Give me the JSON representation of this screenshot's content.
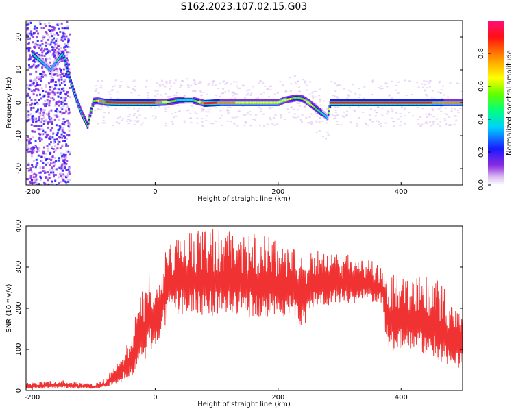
{
  "title": "S162.2023.107.02.15.G03",
  "colors": {
    "snr_line": "#f03232",
    "axis": "#000000",
    "background": "#ffffff",
    "ridge_peak": "#e8001e",
    "spectrogram_low": "#d8b8f0"
  },
  "chart_data": [
    {
      "type": "heatmap",
      "subtype": "spectrogram",
      "title": "",
      "xlabel": "Height of straight line (km)",
      "ylabel": "Frequency (Hz)",
      "xlim": [
        -210,
        500
      ],
      "ylim": [
        -25,
        25
      ],
      "xticks": [
        -200,
        0,
        200,
        400
      ],
      "yticks": [
        -20,
        -10,
        0,
        10,
        20
      ],
      "grid": false,
      "colorbar": {
        "label": "Normalized spectral amplitude",
        "range": [
          0,
          1
        ],
        "ticks": [
          0.0,
          0.2,
          0.4,
          0.6,
          0.8
        ],
        "colormap": "white-purple-blue-cyan-green-yellow-orange-red-magenta"
      },
      "dominant_frequency_track": {
        "x": [
          -200,
          -170,
          -150,
          -140,
          -130,
          -120,
          -110,
          -105,
          -100,
          -95,
          -90,
          -80,
          -60,
          0,
          20,
          40,
          60,
          75,
          80,
          100,
          150,
          200,
          210,
          230,
          240,
          250,
          260,
          270,
          280,
          285,
          300,
          350,
          400,
          450,
          500
        ],
        "y": [
          15,
          10,
          15,
          8,
          2,
          -3,
          -7,
          -3,
          0.5,
          0.6,
          0.5,
          0.1,
          0.0,
          0.0,
          0.2,
          0.8,
          0.8,
          0.1,
          -0.2,
          0.0,
          0.0,
          0.0,
          0.8,
          1.5,
          1.2,
          0.0,
          -1.5,
          -3.0,
          -4.5,
          0.0,
          0.0,
          0.0,
          0.0,
          0.0,
          0.0
        ],
        "amplitude": [
          0.5,
          0.4,
          0.5,
          0.5,
          0.5,
          0.55,
          0.6,
          0.6,
          0.6,
          0.65,
          0.8,
          0.9,
          0.9,
          0.9,
          0.7,
          0.5,
          0.45,
          0.75,
          0.9,
          0.9,
          0.7,
          0.75,
          0.75,
          0.55,
          0.6,
          0.75,
          0.6,
          0.5,
          0.4,
          0.95,
          0.95,
          0.95,
          0.95,
          0.9,
          0.85
        ]
      }
    },
    {
      "type": "line",
      "title": "",
      "xlabel": "Height of straight line (km)",
      "ylabel": "SNR (10 * v/v)",
      "xlim": [
        -210,
        500
      ],
      "ylim": [
        0,
        400
      ],
      "xticks": [
        -200,
        0,
        200,
        400
      ],
      "yticks": [
        0,
        100,
        200,
        300,
        400
      ],
      "grid": false,
      "series": [
        {
          "x": [
            -210,
            -180,
            -150,
            -120,
            -100,
            -80,
            -60,
            -40,
            -20,
            -10,
            0,
            10,
            20,
            40,
            60,
            80,
            100,
            150,
            200,
            220,
            230,
            240,
            260,
            300,
            350,
            370,
            375,
            380,
            400,
            420,
            440,
            460,
            480,
            500
          ],
          "lower": [
            3,
            4,
            5,
            4,
            4,
            6,
            15,
            30,
            60,
            90,
            110,
            130,
            170,
            185,
            185,
            182,
            182,
            178,
            178,
            180,
            160,
            150,
            205,
            210,
            215,
            210,
            110,
            95,
            100,
            100,
            80,
            70,
            60,
            50
          ],
          "upper": [
            18,
            22,
            25,
            20,
            15,
            30,
            70,
            140,
            250,
            300,
            240,
            300,
            360,
            390,
            390,
            390,
            395,
            385,
            370,
            355,
            345,
            345,
            340,
            335,
            320,
            300,
            290,
            290,
            275,
            270,
            290,
            270,
            235,
            190
          ]
        }
      ]
    }
  ]
}
